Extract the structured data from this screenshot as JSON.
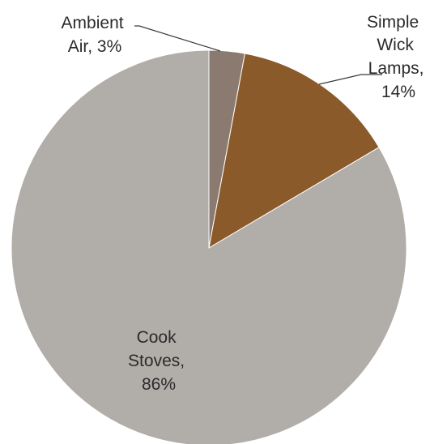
{
  "chart_data": {
    "type": "pie",
    "title": "",
    "slices": [
      {
        "name": "Ambient Air",
        "value": 3,
        "label_lines": [
          "Ambient",
          "Air, 3%"
        ],
        "color": "#8a7a70"
      },
      {
        "name": "Simple Wick Lamps",
        "value": 14,
        "label_lines": [
          "Simple",
          "Wick",
          "Lamps,",
          "14%"
        ],
        "color": "#8b5a2b"
      },
      {
        "name": "Cook Stoves",
        "value": 86,
        "label_lines": [
          "Cook",
          "Stoves,",
          "86%"
        ],
        "color": "#b1ada9"
      }
    ],
    "legend": "none"
  }
}
